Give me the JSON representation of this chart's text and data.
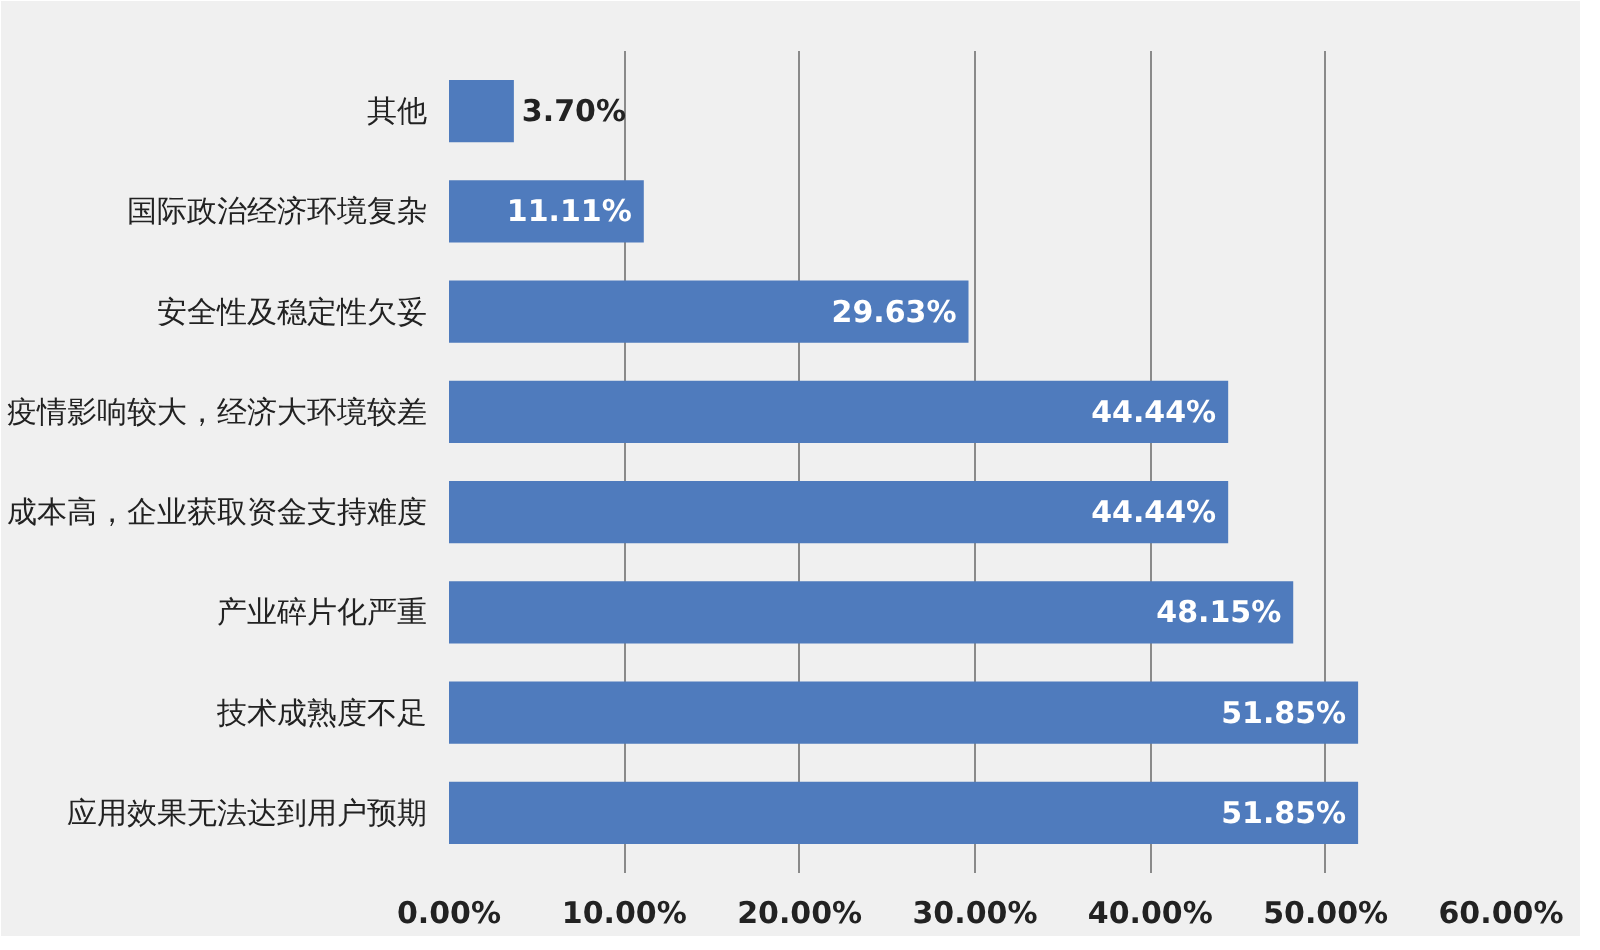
{
  "chart_data": {
    "type": "bar",
    "orientation": "horizontal",
    "categories": [
      "其他",
      "国际政治经济环境复杂",
      "安全性及稳定性欠妥",
      "疫情影响较大，经济大环境较差",
      "成本高，企业获取资金支持难度",
      "产业碎片化严重",
      "技术成熟度不足",
      "应用效果无法达到用户预期"
    ],
    "values": [
      3.7,
      11.11,
      29.63,
      44.44,
      44.44,
      48.15,
      51.85,
      51.85
    ],
    "value_labels": [
      "3.70%",
      "11.11%",
      "29.63%",
      "44.44%",
      "44.44%",
      "48.15%",
      "51.85%",
      "51.85%"
    ],
    "color": "#4f7bbd",
    "xlim": [
      0,
      60
    ],
    "xticks": [
      {
        "value": 0,
        "label": "0.00%"
      },
      {
        "value": 10,
        "label": "10.00%"
      },
      {
        "value": 20,
        "label": "20.00%"
      },
      {
        "value": 30,
        "label": "30.00%"
      },
      {
        "value": 40,
        "label": "40.00%"
      },
      {
        "value": 50,
        "label": "50.00%"
      },
      {
        "value": 60,
        "label": "60.00%"
      }
    ],
    "grid": "x"
  }
}
